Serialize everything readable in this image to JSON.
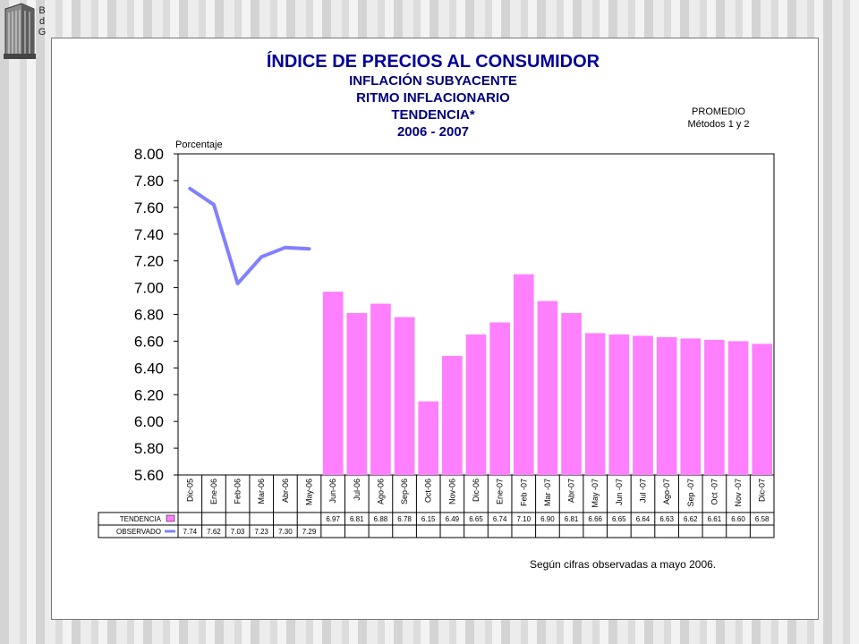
{
  "logo": {
    "name": "bdg-logo",
    "letters": [
      "B",
      "d",
      "G"
    ]
  },
  "colors": {
    "bar": "#ff80ff",
    "line": "#8080ff",
    "title": "#000099",
    "subtitle": "#000080"
  },
  "chart_data": {
    "type": "bar",
    "title": "ÍNDICE DE PRECIOS AL CONSUMIDOR",
    "subtitle_lines": [
      "INFLACIÓN SUBYACENTE",
      "RITMO INFLACIONARIO",
      "TENDENCIA*",
      "2006 - 2007"
    ],
    "side_note": [
      "PROMEDIO",
      "Métodos 1 y 2"
    ],
    "ylabel": "Porcentaje",
    "ylim": [
      5.6,
      8.0
    ],
    "yticks": [
      "8.00",
      "7.80",
      "7.60",
      "7.40",
      "7.20",
      "7.00",
      "6.80",
      "6.60",
      "6.40",
      "6.20",
      "6.00",
      "5.80",
      "5.60"
    ],
    "categories": [
      "Dic-05",
      "Ene-06",
      "Feb-06",
      "Mar-06",
      "Abr-06",
      "May-06",
      "Jun-06",
      "Jul-06",
      "Ago-06",
      "Sep-06",
      "Oct-06",
      "Nov-06",
      "Dic-06",
      "Ene-07",
      "Feb -07",
      "Mar -07",
      "Abr-07",
      "May -07",
      "Jun -07",
      "Jul -07",
      "Ago-07",
      "Sep -07",
      "Oct -07",
      "Nov -07",
      "Dic-07"
    ],
    "series": [
      {
        "name": "TENDENCIA",
        "type": "bar",
        "color": "#ff80ff",
        "values": [
          null,
          null,
          null,
          null,
          null,
          null,
          6.97,
          6.81,
          6.88,
          6.78,
          6.15,
          6.49,
          6.65,
          6.74,
          7.1,
          6.9,
          6.81,
          6.66,
          6.65,
          6.64,
          6.63,
          6.62,
          6.61,
          6.6,
          6.58
        ],
        "labels": [
          "",
          "",
          "",
          "",
          "",
          "",
          "6.97",
          "6.81",
          "6.88",
          "6.78",
          "6.15",
          "6.49",
          "6.65",
          "6.74",
          "7.10",
          "6.90",
          "6.81",
          "6.66",
          "6.65",
          "6.64",
          "6.63",
          "6.62",
          "6.61",
          "6.60",
          "6.58"
        ]
      },
      {
        "name": "OBSERVADO",
        "type": "line",
        "color": "#8080ff",
        "values": [
          7.74,
          7.62,
          7.03,
          7.23,
          7.3,
          7.29,
          null,
          null,
          null,
          null,
          null,
          null,
          null,
          null,
          null,
          null,
          null,
          null,
          null,
          null,
          null,
          null,
          null,
          null,
          null
        ],
        "labels": [
          "7.74",
          "7.62",
          "7.03",
          "7.23",
          "7.30",
          "7.29",
          "",
          "",
          "",
          "",
          "",
          "",
          "",
          "",
          "",
          "",
          "",
          "",
          "",
          "",
          "",
          "",
          "",
          "",
          ""
        ]
      }
    ],
    "footnote": "Según cifras observadas a mayo 2006.",
    "grid": false,
    "legend": "data-table"
  }
}
